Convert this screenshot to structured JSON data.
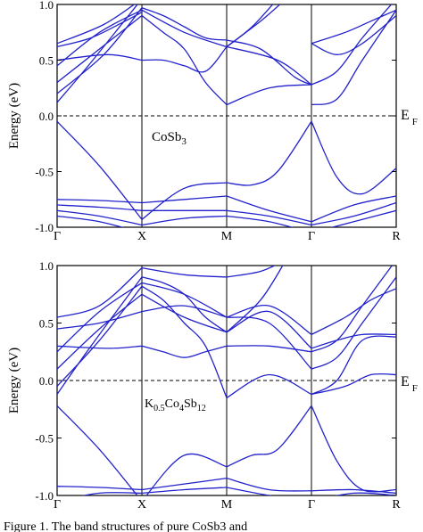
{
  "chart_data": [
    {
      "type": "line",
      "title": "",
      "label": "CoSb",
      "label_sub": "3",
      "xlabel": "",
      "ylabel": "Energy (eV)",
      "ylim": [
        -1.0,
        1.0
      ],
      "yticks": [
        "1.0",
        "0.5",
        "0.0",
        "-0.5",
        "-1.0"
      ],
      "xticks": [
        "Γ",
        "X",
        "M",
        "Γ",
        "R"
      ],
      "fermi_label": "E",
      "fermi_sub": "F",
      "line_color": "#2222cc",
      "bands": [
        [
          [
            0,
            0.12
          ],
          [
            0.4,
            0.48
          ],
          [
            1,
            1.05
          ]
        ],
        [
          [
            0,
            0.2
          ],
          [
            0.55,
            0.55
          ],
          [
            1,
            0.97
          ]
        ],
        [
          [
            0,
            0.3
          ],
          [
            0.5,
            0.6
          ],
          [
            1,
            0.9
          ]
        ],
        [
          [
            0,
            0.45
          ],
          [
            0.5,
            0.75
          ],
          [
            1,
            0.95
          ]
        ],
        [
          [
            0,
            0.5
          ],
          [
            0.6,
            0.55
          ],
          [
            1,
            0.5
          ]
        ],
        [
          [
            0,
            0.62
          ],
          [
            0.4,
            0.7
          ],
          [
            0.8,
            0.85
          ],
          [
            1,
            0.93
          ]
        ],
        [
          [
            0,
            0.65
          ],
          [
            0.55,
            0.82
          ],
          [
            1,
            1.05
          ]
        ],
        [
          [
            0,
            -0.05
          ],
          [
            0.5,
            -0.45
          ],
          [
            1,
            -0.93
          ]
        ],
        [
          [
            0,
            -0.75
          ],
          [
            0.5,
            -0.76
          ],
          [
            1,
            -0.78
          ]
        ],
        [
          [
            0,
            -0.8
          ],
          [
            0.5,
            -0.82
          ],
          [
            1,
            -0.85
          ]
        ],
        [
          [
            0,
            -0.85
          ],
          [
            0.5,
            -0.9
          ],
          [
            1,
            -0.98
          ]
        ],
        [
          [
            0,
            -0.9
          ],
          [
            0.5,
            -0.95
          ],
          [
            1,
            -1.05
          ]
        ],
        [
          [
            1,
            0.97
          ],
          [
            1.25,
            0.9
          ],
          [
            1.5,
            0.8
          ],
          [
            1.75,
            0.7
          ],
          [
            2,
            0.68
          ]
        ],
        [
          [
            1,
            0.9
          ],
          [
            1.25,
            0.75
          ],
          [
            1.5,
            0.6
          ],
          [
            1.75,
            0.3
          ],
          [
            2,
            0.1
          ]
        ],
        [
          [
            1,
            0.5
          ],
          [
            1.25,
            0.5
          ],
          [
            1.5,
            0.45
          ],
          [
            1.75,
            0.4
          ],
          [
            2,
            0.62
          ]
        ],
        [
          [
            1,
            0.95
          ],
          [
            1.5,
            0.75
          ],
          [
            2,
            0.62
          ]
        ],
        [
          [
            1,
            -0.93
          ],
          [
            1.5,
            -0.65
          ],
          [
            2,
            -0.6
          ]
        ],
        [
          [
            1,
            -0.78
          ],
          [
            1.5,
            -0.75
          ],
          [
            2,
            -0.72
          ]
        ],
        [
          [
            1,
            -0.85
          ],
          [
            1.5,
            -0.85
          ],
          [
            2,
            -0.85
          ]
        ],
        [
          [
            1,
            -0.98
          ],
          [
            1.5,
            -0.92
          ],
          [
            2,
            -0.9
          ]
        ],
        [
          [
            2,
            0.62
          ],
          [
            2.3,
            0.8
          ],
          [
            2.6,
            1.05
          ]
        ],
        [
          [
            2,
            0.62
          ],
          [
            2.4,
            0.85
          ],
          [
            2.7,
            1.05
          ]
        ],
        [
          [
            2,
            0.68
          ],
          [
            2.4,
            0.6
          ],
          [
            2.8,
            0.35
          ],
          [
            3,
            0.28
          ]
        ],
        [
          [
            2,
            0.1
          ],
          [
            2.5,
            0.25
          ],
          [
            3,
            0.28
          ]
        ],
        [
          [
            2,
            0.62
          ],
          [
            2.6,
            0.5
          ],
          [
            3,
            0.28
          ]
        ],
        [
          [
            2,
            -0.6
          ],
          [
            2.3,
            -0.62
          ],
          [
            2.6,
            -0.5
          ],
          [
            3,
            -0.05
          ]
        ],
        [
          [
            2,
            -0.72
          ],
          [
            2.5,
            -0.85
          ],
          [
            3,
            -0.95
          ]
        ],
        [
          [
            2,
            -0.85
          ],
          [
            2.5,
            -0.9
          ],
          [
            3,
            -0.98
          ]
        ],
        [
          [
            2,
            -0.9
          ],
          [
            2.5,
            -0.95
          ],
          [
            3,
            -1.05
          ]
        ],
        [
          [
            3,
            0.28
          ],
          [
            3.3,
            0.4
          ],
          [
            3.6,
            0.7
          ],
          [
            4,
            1.05
          ]
        ],
        [
          [
            3,
            0.1
          ],
          [
            3.3,
            0.15
          ],
          [
            3.6,
            0.5
          ],
          [
            4,
            0.95
          ]
        ],
        [
          [
            3,
            0.65
          ],
          [
            3.3,
            0.55
          ],
          [
            3.6,
            0.65
          ],
          [
            4,
            0.9
          ]
        ],
        [
          [
            3,
            0.65
          ],
          [
            3.4,
            0.75
          ],
          [
            3.7,
            0.85
          ],
          [
            4,
            0.95
          ]
        ],
        [
          [
            3,
            -0.05
          ],
          [
            3.3,
            -0.55
          ],
          [
            3.6,
            -0.7
          ],
          [
            4,
            -0.47
          ]
        ],
        [
          [
            3,
            -0.95
          ],
          [
            3.5,
            -0.8
          ],
          [
            4,
            -0.72
          ]
        ],
        [
          [
            3,
            -0.98
          ],
          [
            3.5,
            -0.9
          ],
          [
            4,
            -0.78
          ]
        ],
        [
          [
            3,
            -1.05
          ],
          [
            3.5,
            -0.95
          ],
          [
            4,
            -0.85
          ]
        ]
      ]
    },
    {
      "type": "line",
      "title": "",
      "label": "K",
      "label_sub1": "0.5",
      "label_mid": "Co",
      "label_sub2": "4",
      "label_end": "Sb",
      "label_sub3": "12",
      "xlabel": "",
      "ylabel": "Energy (eV)",
      "ylim": [
        -1.0,
        1.0
      ],
      "yticks": [
        "1.0",
        "0.5",
        "0.0",
        "-0.5",
        "-1.0"
      ],
      "xticks": [
        "Γ",
        "X",
        "M",
        "Γ",
        "R"
      ],
      "fermi_label": "E",
      "fermi_sub": "F",
      "line_color": "#2222cc",
      "bands": [
        [
          [
            0,
            -0.12
          ],
          [
            0.4,
            0.3
          ],
          [
            1,
            0.9
          ]
        ],
        [
          [
            0,
            -0.05
          ],
          [
            0.5,
            0.35
          ],
          [
            1,
            0.82
          ]
        ],
        [
          [
            0,
            0.1
          ],
          [
            0.5,
            0.45
          ],
          [
            1,
            0.75
          ]
        ],
        [
          [
            0,
            0.25
          ],
          [
            0.5,
            0.6
          ],
          [
            1,
            0.85
          ]
        ],
        [
          [
            0,
            0.3
          ],
          [
            0.6,
            0.28
          ],
          [
            1,
            0.3
          ]
        ],
        [
          [
            0,
            0.45
          ],
          [
            0.5,
            0.5
          ],
          [
            1,
            0.6
          ]
        ],
        [
          [
            0,
            0.55
          ],
          [
            0.5,
            0.65
          ],
          [
            1,
            0.98
          ]
        ],
        [
          [
            0,
            -0.22
          ],
          [
            0.5,
            -0.6
          ],
          [
            1,
            -1.05
          ]
        ],
        [
          [
            0,
            -0.92
          ],
          [
            0.5,
            -0.93
          ],
          [
            1,
            -0.95
          ]
        ],
        [
          [
            0,
            -1.05
          ],
          [
            0.5,
            -0.98
          ],
          [
            1,
            -0.98
          ]
        ],
        [
          [
            1,
            0.9
          ],
          [
            1.25,
            0.85
          ],
          [
            1.5,
            0.75
          ],
          [
            1.75,
            0.55
          ],
          [
            2,
            0.42
          ]
        ],
        [
          [
            1,
            0.82
          ],
          [
            1.25,
            0.7
          ],
          [
            1.5,
            0.5
          ],
          [
            1.75,
            0.3
          ],
          [
            2,
            -0.15
          ]
        ],
        [
          [
            1,
            0.75
          ],
          [
            1.5,
            0.55
          ],
          [
            2,
            0.42
          ]
        ],
        [
          [
            1,
            0.85
          ],
          [
            1.5,
            0.75
          ],
          [
            2,
            0.55
          ]
        ],
        [
          [
            1,
            0.3
          ],
          [
            1.25,
            0.25
          ],
          [
            1.5,
            0.2
          ],
          [
            1.75,
            0.25
          ],
          [
            2,
            0.3
          ]
        ],
        [
          [
            1,
            0.6
          ],
          [
            1.5,
            0.65
          ],
          [
            2,
            0.55
          ]
        ],
        [
          [
            1,
            0.98
          ],
          [
            1.5,
            0.92
          ],
          [
            2,
            0.9
          ]
        ],
        [
          [
            1,
            -1.05
          ],
          [
            1.5,
            -0.65
          ],
          [
            2,
            -0.75
          ]
        ],
        [
          [
            1,
            -0.95
          ],
          [
            1.5,
            -0.9
          ],
          [
            2,
            -0.85
          ]
        ],
        [
          [
            1,
            -0.98
          ],
          [
            1.5,
            -0.95
          ],
          [
            2,
            -0.93
          ]
        ],
        [
          [
            2,
            0.42
          ],
          [
            2.4,
            0.7
          ],
          [
            2.7,
            1.05
          ]
        ],
        [
          [
            2,
            0.42
          ],
          [
            2.5,
            0.6
          ],
          [
            3,
            0.28
          ]
        ],
        [
          [
            2,
            0.55
          ],
          [
            2.5,
            0.65
          ],
          [
            3,
            0.4
          ]
        ],
        [
          [
            2,
            0.3
          ],
          [
            2.5,
            0.3
          ],
          [
            3,
            0.25
          ]
        ],
        [
          [
            2,
            0.55
          ],
          [
            2.5,
            0.5
          ],
          [
            3,
            0.1
          ]
        ],
        [
          [
            2,
            0.9
          ],
          [
            2.4,
            0.95
          ],
          [
            2.7,
            1.05
          ]
        ],
        [
          [
            2,
            -0.15
          ],
          [
            2.5,
            0.05
          ],
          [
            3,
            -0.12
          ]
        ],
        [
          [
            2,
            -0.75
          ],
          [
            2.3,
            -0.65
          ],
          [
            2.6,
            -0.6
          ],
          [
            3,
            -0.22
          ]
        ],
        [
          [
            2,
            -0.85
          ],
          [
            2.5,
            -0.95
          ],
          [
            3,
            -0.96
          ]
        ],
        [
          [
            2,
            -0.93
          ],
          [
            2.5,
            -1.0
          ],
          [
            3,
            -1.05
          ]
        ],
        [
          [
            3,
            0.25
          ],
          [
            3.3,
            0.35
          ],
          [
            3.6,
            0.65
          ],
          [
            4,
            1.05
          ]
        ],
        [
          [
            3,
            0.1
          ],
          [
            3.3,
            0.2
          ],
          [
            3.6,
            0.5
          ],
          [
            4,
            0.9
          ]
        ],
        [
          [
            3,
            0.28
          ],
          [
            3.3,
            0.35
          ],
          [
            3.6,
            0.4
          ],
          [
            4,
            0.4
          ]
        ],
        [
          [
            3,
            0.4
          ],
          [
            3.4,
            0.55
          ],
          [
            3.7,
            0.7
          ],
          [
            4,
            0.8
          ]
        ],
        [
          [
            3,
            -0.12
          ],
          [
            3.3,
            0.0
          ],
          [
            3.6,
            0.35
          ],
          [
            4,
            0.38
          ]
        ],
        [
          [
            3,
            -0.12
          ],
          [
            3.4,
            -0.05
          ],
          [
            3.7,
            0.05
          ],
          [
            4,
            0.05
          ]
        ],
        [
          [
            3,
            -0.22
          ],
          [
            3.3,
            -0.7
          ],
          [
            3.6,
            -0.95
          ],
          [
            4,
            -0.95
          ]
        ],
        [
          [
            3,
            -0.96
          ],
          [
            3.5,
            -0.95
          ],
          [
            4,
            -0.98
          ]
        ],
        [
          [
            3,
            -1.05
          ],
          [
            3.5,
            -0.98
          ],
          [
            4,
            -1.0
          ]
        ]
      ]
    }
  ],
  "caption": "Figure 1. The band structures of pure CoSb3 and"
}
